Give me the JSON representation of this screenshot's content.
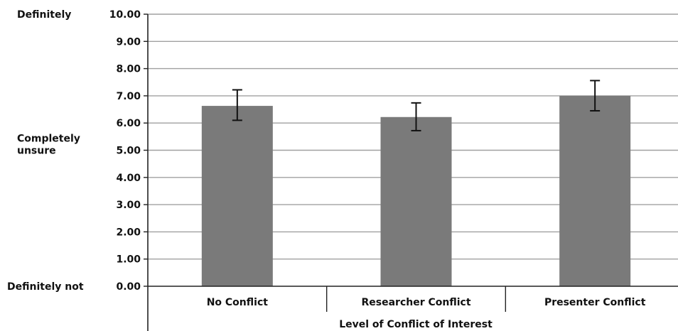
{
  "chart_data": {
    "type": "bar",
    "title": "",
    "xlabel": "Level of Conflict of Interest",
    "ylabel": "",
    "categories": [
      "No Conflict",
      "Researcher Conflict",
      "Presenter Conflict"
    ],
    "values": [
      6.63,
      6.22,
      7.0
    ],
    "error_bars": [
      {
        "low": 6.1,
        "high": 7.22
      },
      {
        "low": 5.72,
        "high": 6.74
      },
      {
        "low": 6.45,
        "high": 7.56
      }
    ],
    "ylim": [
      0,
      10
    ],
    "yticks": [
      "0.00",
      "1.00",
      "2.00",
      "3.00",
      "4.00",
      "5.00",
      "6.00",
      "7.00",
      "8.00",
      "9.00",
      "10.00"
    ],
    "y_anchor_labels": [
      {
        "value": 10,
        "lines": [
          "Definitely"
        ]
      },
      {
        "value": 5,
        "lines": [
          "Completely",
          "unsure"
        ]
      },
      {
        "value": 0,
        "lines": [
          "Definitely not"
        ]
      }
    ],
    "grid": true,
    "bar_color": "#7a7a7a",
    "grid_color": "#a0a0a0",
    "axis_color": "#222222"
  }
}
